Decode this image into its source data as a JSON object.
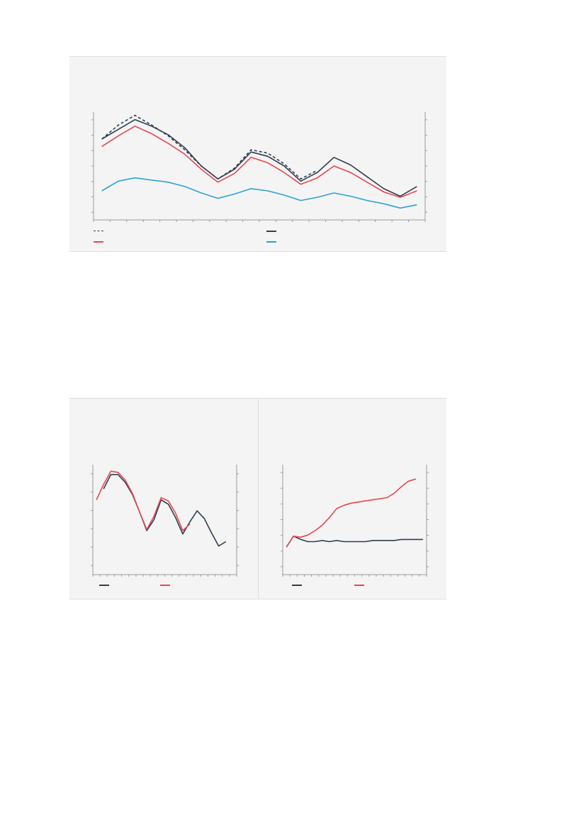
{
  "colors": {
    "navy": "#2f3e51",
    "red": "#e8474f",
    "blue": "#2aa3d5",
    "panel_bg": "#f4f4f4",
    "axis": "#9a9a9a"
  },
  "chart_data": [
    {
      "id": "top",
      "type": "line",
      "title": "",
      "x": [
        1,
        2,
        3,
        4,
        5,
        6,
        7,
        8,
        9,
        10,
        11,
        12,
        13,
        14,
        15,
        16,
        17,
        18,
        19,
        20
      ],
      "xlim": [
        0.5,
        20.5
      ],
      "ylim": [
        0,
        100
      ],
      "grid": false,
      "legend_position": "bottom",
      "series": [
        {
          "name": "",
          "color": "#2f3e51",
          "dash": true,
          "values": [
            75,
            88,
            97,
            88,
            78,
            65,
            50,
            38,
            48,
            65,
            62,
            52,
            38,
            46,
            null,
            null,
            null,
            null,
            null,
            null
          ]
        },
        {
          "name": "",
          "color": "#2f3e51",
          "dash": false,
          "values": [
            75,
            84,
            93,
            87,
            79,
            67,
            50,
            38,
            47,
            63,
            59,
            50,
            36,
            44,
            58,
            51,
            40,
            29,
            22,
            31
          ]
        },
        {
          "name": "",
          "color": "#e8474f",
          "dash": false,
          "values": [
            68,
            78,
            87,
            80,
            71,
            61,
            47,
            35,
            43,
            58,
            53,
            44,
            33,
            39,
            50,
            44,
            35,
            26,
            21,
            27
          ]
        },
        {
          "name": "",
          "color": "#2aa3d5",
          "dash": false,
          "values": [
            27,
            36,
            39,
            37,
            35,
            31,
            25,
            20,
            24,
            29,
            27,
            23,
            18,
            21,
            25,
            22,
            18,
            15,
            11,
            14
          ]
        }
      ]
    },
    {
      "id": "bottom-left",
      "type": "line",
      "title": "",
      "x": [
        1,
        2,
        3,
        4,
        5,
        6,
        7,
        8,
        9,
        10,
        11,
        12,
        13,
        14,
        15,
        16,
        17,
        18,
        19,
        20
      ],
      "xlim": [
        0.5,
        20.5
      ],
      "ylim": [
        0,
        100
      ],
      "grid": false,
      "legend_position": "bottom",
      "series": [
        {
          "name": "",
          "color": "#2f3e51",
          "values": [
            null,
            78,
            91,
            91,
            84,
            73,
            57,
            40,
            50,
            68,
            64,
            52,
            37,
            48,
            58,
            51,
            38,
            26,
            30,
            null
          ]
        },
        {
          "name": "",
          "color": "#e8474f",
          "values": [
            68,
            82,
            94,
            93,
            86,
            74,
            57,
            41,
            53,
            70,
            67,
            56,
            40,
            46,
            null,
            null,
            null,
            null,
            null,
            null
          ]
        }
      ]
    },
    {
      "id": "bottom-right",
      "type": "line",
      "title": "",
      "x": [
        1,
        2,
        3,
        4,
        5,
        6,
        7,
        8,
        9,
        10,
        11,
        12,
        13,
        14,
        15,
        16,
        17,
        18,
        19,
        20
      ],
      "xlim": [
        0.5,
        20.5
      ],
      "ylim": [
        0,
        100
      ],
      "grid": false,
      "legend_position": "bottom",
      "series": [
        {
          "name": "",
          "color": "#2f3e51",
          "values": [
            25,
            35,
            32,
            30,
            30,
            31,
            30,
            31,
            30,
            30,
            30,
            30,
            31,
            31,
            31,
            31,
            32,
            32,
            32,
            32
          ]
        },
        {
          "name": "",
          "color": "#e8474f",
          "values": [
            25,
            35,
            34,
            36,
            40,
            45,
            52,
            60,
            63,
            65,
            66,
            67,
            68,
            69,
            70,
            74,
            80,
            85,
            87,
            null
          ]
        }
      ]
    }
  ]
}
